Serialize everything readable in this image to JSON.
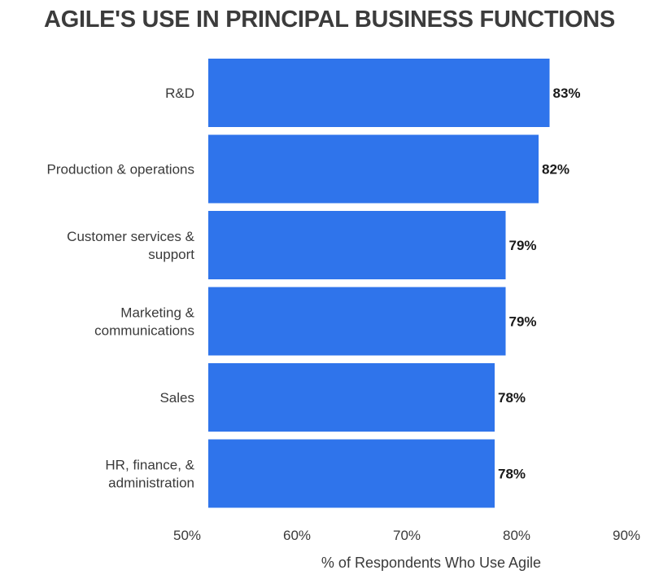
{
  "chart_data": {
    "type": "bar",
    "orientation": "horizontal",
    "title": "AGILE'S USE IN PRINCIPAL BUSINESS FUNCTIONS",
    "xlabel": "% of Respondents Who Use Agile",
    "ylabel": "",
    "categories": [
      "R&D",
      "Production & operations",
      "Customer services & support",
      "Marketing & communications",
      "Sales",
      "HR, finance, & administration"
    ],
    "category_lines": [
      [
        "R&D"
      ],
      [
        "Production & operations"
      ],
      [
        "Customer services &",
        "support"
      ],
      [
        "Marketing &",
        "communications"
      ],
      [
        "Sales"
      ],
      [
        "HR, finance, &",
        "administration"
      ]
    ],
    "values": [
      83,
      82,
      79,
      79,
      78,
      78
    ],
    "value_labels": [
      "83%",
      "82%",
      "79%",
      "79%",
      "78%",
      "78%"
    ],
    "xlim": [
      50,
      90
    ],
    "ticks": [
      50,
      60,
      70,
      80,
      90
    ],
    "tick_labels": [
      "50%",
      "60%",
      "70%",
      "80%",
      "90%"
    ],
    "bar_color": "#2f74eb",
    "grid": false,
    "legend": "none"
  }
}
